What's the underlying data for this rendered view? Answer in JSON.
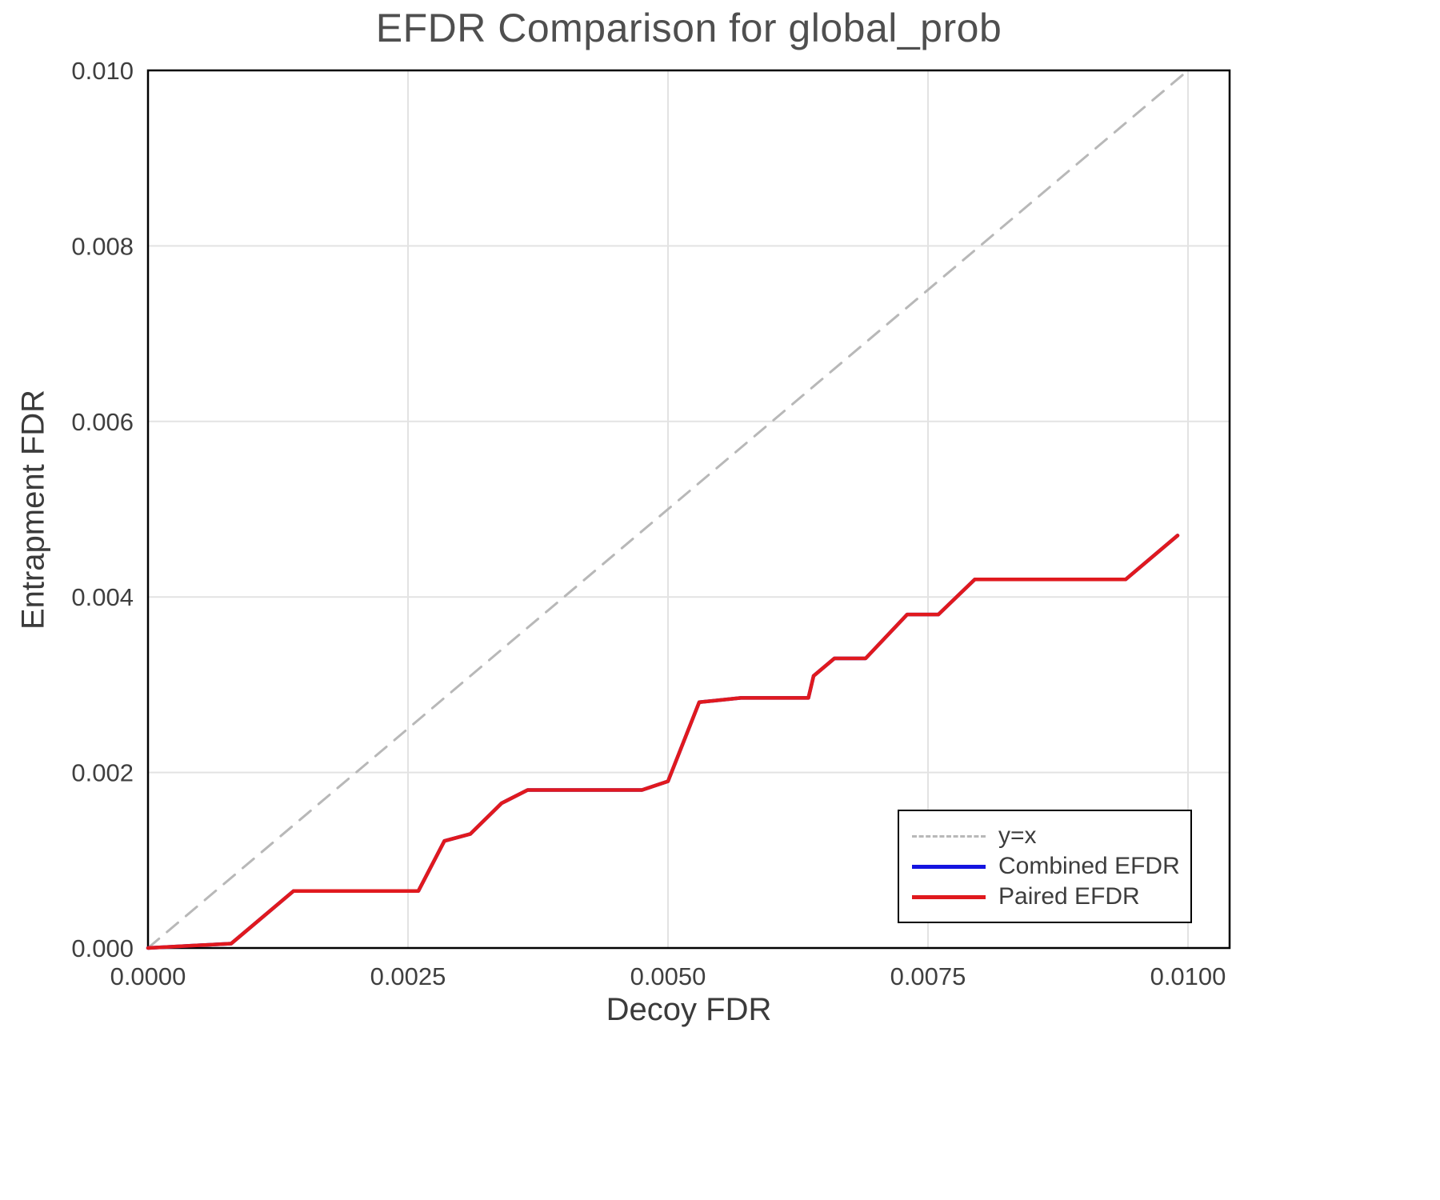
{
  "chart_data": {
    "type": "line",
    "title": "EFDR Comparison for global_prob",
    "xlabel": "Decoy FDR",
    "ylabel": "Entrapment FDR",
    "xlim": [
      0,
      0.0104
    ],
    "ylim": [
      0,
      0.01
    ],
    "xticks": [
      0,
      0.0025,
      0.005,
      0.0075,
      0.01
    ],
    "xtick_labels": [
      "0.0000",
      "0.0025",
      "0.0050",
      "0.0075",
      "0.0100"
    ],
    "yticks": [
      0,
      0.002,
      0.004,
      0.006,
      0.008,
      0.01
    ],
    "ytick_labels": [
      "0.000",
      "0.002",
      "0.004",
      "0.006",
      "0.008",
      "0.010"
    ],
    "grid": true,
    "legend_position": "bottom-right",
    "colors": {
      "grid": "#e3e3e3",
      "frame": "#000000",
      "axis_text": "#3f3f3f",
      "title": "#4f4f4f",
      "background": "#ffffff"
    },
    "series": [
      {
        "name": "y=x",
        "color": "#b8b8b8",
        "dash": true,
        "width": 3,
        "x": [
          0,
          0.01
        ],
        "y": [
          0,
          0.01
        ]
      },
      {
        "name": "Combined EFDR",
        "color": "#1414e0",
        "dash": false,
        "width": 4.5,
        "x": [
          0.0,
          0.0008,
          0.0014,
          0.0026,
          0.00285,
          0.0031,
          0.0034,
          0.00365,
          0.00475,
          0.005,
          0.0053,
          0.0057,
          0.00635,
          0.0064,
          0.0066,
          0.0069,
          0.0073,
          0.0076,
          0.00795,
          0.0094,
          0.0099
        ],
        "y": [
          0.0,
          5e-05,
          0.00065,
          0.00065,
          0.00122,
          0.0013,
          0.00165,
          0.0018,
          0.0018,
          0.0019,
          0.0028,
          0.00285,
          0.00285,
          0.0031,
          0.0033,
          0.0033,
          0.0038,
          0.0038,
          0.0042,
          0.0042,
          0.0047
        ]
      },
      {
        "name": "Paired EFDR",
        "color": "#e0191e",
        "dash": false,
        "width": 4.5,
        "x": [
          0.0,
          0.0008,
          0.0014,
          0.0026,
          0.00285,
          0.0031,
          0.0034,
          0.00365,
          0.00475,
          0.005,
          0.0053,
          0.0057,
          0.00635,
          0.0064,
          0.0066,
          0.0069,
          0.0073,
          0.0076,
          0.00795,
          0.0094,
          0.0099
        ],
        "y": [
          0.0,
          5e-05,
          0.00065,
          0.00065,
          0.00122,
          0.0013,
          0.00165,
          0.0018,
          0.0018,
          0.0019,
          0.0028,
          0.00285,
          0.00285,
          0.0031,
          0.0033,
          0.0033,
          0.0038,
          0.0038,
          0.0042,
          0.0042,
          0.0047
        ]
      }
    ]
  }
}
